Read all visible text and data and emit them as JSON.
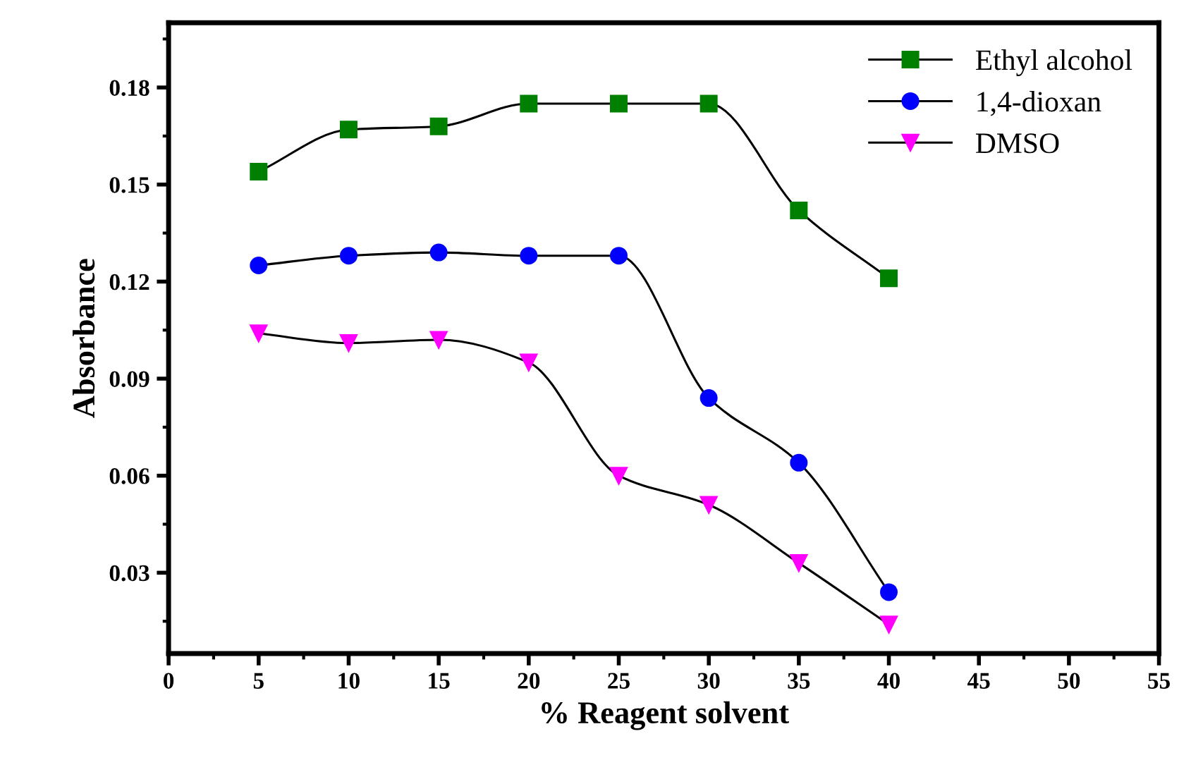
{
  "chart_data": {
    "type": "line",
    "xlabel": "% Reagent solvent",
    "ylabel": "Absorbance",
    "x": [
      5,
      10,
      15,
      20,
      25,
      30,
      35,
      40
    ],
    "series": [
      {
        "name": "Ethyl alcohol",
        "color": "#008000",
        "marker": "square",
        "values": [
          0.154,
          0.167,
          0.168,
          0.175,
          0.175,
          0.175,
          0.142,
          0.121
        ]
      },
      {
        "name": "1,4-dioxan",
        "color": "#0000ff",
        "marker": "circle",
        "values": [
          0.125,
          0.128,
          0.129,
          0.128,
          0.128,
          0.084,
          0.064,
          0.024
        ]
      },
      {
        "name": "DMSO",
        "color": "#ff00ff",
        "marker": "triangle",
        "values": [
          0.104,
          0.101,
          0.102,
          0.095,
          0.06,
          0.051,
          0.033,
          0.014
        ]
      }
    ],
    "xlim": [
      0,
      55
    ],
    "xticks": [
      0,
      5,
      10,
      15,
      20,
      25,
      30,
      35,
      40,
      45,
      50,
      55
    ],
    "ylim": [
      0.005,
      0.2
    ],
    "yticks": [
      {
        "value": 0.03,
        "label": "0.03"
      },
      {
        "value": 0.06,
        "label": "0.06"
      },
      {
        "value": 0.09,
        "label": "0.09"
      },
      {
        "value": 0.12,
        "label": "0.12"
      },
      {
        "value": 0.15,
        "label": "0.15"
      },
      {
        "value": 0.18,
        "label": "0.18"
      }
    ],
    "grid": false,
    "legend": "top right"
  }
}
